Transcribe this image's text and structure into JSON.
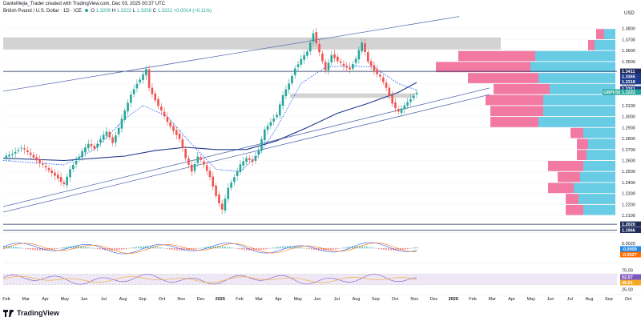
{
  "header": {
    "created_by": "DanteMejia_Trader created with TradingView.com, Dec 03, 2025 00:37 UTC",
    "symbol_line": "British Pound / U.S. Dollar · 1D · ICE",
    "ohlc": {
      "o_label": "O",
      "o": "1.3209",
      "h_label": "H",
      "h": "1.3222",
      "l_label": "L",
      "l": "1.3208",
      "c_label": "C",
      "c": "1.3222",
      "change": "+0.0014 (+0.11%)"
    },
    "currency": "USD"
  },
  "branding": {
    "name": "TradingView"
  },
  "colors": {
    "up": "#26a69a",
    "down": "#ef5350",
    "long_ma": "#1e3a8a",
    "channel": "#5b6fb0",
    "vp_up": "#4fc3e0",
    "vp_down": "#f06292",
    "zone": "#c8c8c8",
    "rsi_band": "#ede7f6",
    "rsi": "#7e57c2"
  },
  "chart_data": {
    "type": "candlestick",
    "title": "British Pound / U.S. Dollar, 1D",
    "y_axis": {
      "ticks": [
        "1.3800",
        "1.3700",
        "1.3600",
        "1.3500",
        "1.3400",
        "1.3300",
        "1.3100",
        "1.3000",
        "1.2900",
        "1.2800",
        "1.2700",
        "1.2600",
        "1.2500",
        "1.2400",
        "1.2300",
        "1.2200",
        "1.2100"
      ],
      "range": [
        1.205,
        1.39
      ]
    },
    "x_axis": {
      "ticks": [
        "Feb",
        "Mar",
        "Apr",
        "May",
        "Jun",
        "Jul",
        "Aug",
        "Sep",
        "Oct",
        "Nov",
        "Dec",
        "2025",
        "Feb",
        "Mar",
        "Apr",
        "May",
        "Jun",
        "Jul",
        "Aug",
        "Sep",
        "Oct",
        "Nov",
        "Dec",
        "2026",
        "Feb",
        "Mar",
        "Apr",
        "May",
        "Jun",
        "Jul",
        "Aug",
        "Sep",
        "Oct"
      ]
    },
    "price_badges": [
      {
        "value": "1.3411",
        "color": "#1e2a5a"
      },
      {
        "value": "1.3365",
        "color": "#1e3a8a"
      },
      {
        "value": "1.3318",
        "color": "#1e3a8a"
      },
      {
        "value": "1.3251",
        "color": "#1e3a8a"
      },
      {
        "value": "1.3222",
        "color": "#26a69a",
        "symbol": "GBPUSD"
      },
      {
        "value": "1.2020",
        "color": "#1e2a5a"
      },
      {
        "value": "1.1966",
        "color": "#1e2a5a"
      }
    ],
    "price_path": [
      [
        0,
        1.263
      ],
      [
        3,
        1.266
      ],
      [
        6,
        1.272
      ],
      [
        9,
        1.265
      ],
      [
        12,
        1.258
      ],
      [
        15,
        1.251
      ],
      [
        18,
        1.244
      ],
      [
        20,
        1.238
      ],
      [
        22,
        1.252
      ],
      [
        24,
        1.26
      ],
      [
        26,
        1.268
      ],
      [
        28,
        1.275
      ],
      [
        30,
        1.271
      ],
      [
        32,
        1.28
      ],
      [
        34,
        1.286
      ],
      [
        36,
        1.276
      ],
      [
        38,
        1.29
      ],
      [
        40,
        1.305
      ],
      [
        42,
        1.32
      ],
      [
        44,
        1.33
      ],
      [
        46,
        1.338
      ],
      [
        47,
        1.343
      ],
      [
        48,
        1.326
      ],
      [
        50,
        1.315
      ],
      [
        52,
        1.305
      ],
      [
        54,
        1.295
      ],
      [
        56,
        1.287
      ],
      [
        58,
        1.28
      ],
      [
        60,
        1.262
      ],
      [
        62,
        1.25
      ],
      [
        64,
        1.264
      ],
      [
        66,
        1.256
      ],
      [
        68,
        1.245
      ],
      [
        70,
        1.228
      ],
      [
        72,
        1.215
      ],
      [
        74,
        1.235
      ],
      [
        76,
        1.245
      ],
      [
        78,
        1.256
      ],
      [
        80,
        1.262
      ],
      [
        82,
        1.259
      ],
      [
        84,
        1.27
      ],
      [
        86,
        1.288
      ],
      [
        88,
        1.295
      ],
      [
        90,
        1.302
      ],
      [
        92,
        1.319
      ],
      [
        94,
        1.33
      ],
      [
        96,
        1.344
      ],
      [
        98,
        1.352
      ],
      [
        100,
        1.359
      ],
      [
        102,
        1.376
      ],
      [
        104,
        1.358
      ],
      [
        106,
        1.342
      ],
      [
        108,
        1.356
      ],
      [
        110,
        1.351
      ],
      [
        112,
        1.346
      ],
      [
        114,
        1.343
      ],
      [
        116,
        1.353
      ],
      [
        118,
        1.367
      ],
      [
        120,
        1.35
      ],
      [
        122,
        1.342
      ],
      [
        124,
        1.336
      ],
      [
        126,
        1.326
      ],
      [
        128,
        1.312
      ],
      [
        130,
        1.304
      ],
      [
        132,
        1.31
      ],
      [
        134,
        1.316
      ],
      [
        136,
        1.3222
      ]
    ],
    "long_ma": [
      [
        0,
        1.262
      ],
      [
        20,
        1.26
      ],
      [
        40,
        1.264
      ],
      [
        50,
        1.269
      ],
      [
        60,
        1.272
      ],
      [
        70,
        1.27
      ],
      [
        80,
        1.27
      ],
      [
        90,
        1.278
      ],
      [
        100,
        1.29
      ],
      [
        110,
        1.303
      ],
      [
        120,
        1.312
      ],
      [
        130,
        1.322
      ],
      [
        136,
        1.331
      ]
    ],
    "short_ma": [
      [
        0,
        1.26
      ],
      [
        20,
        1.256
      ],
      [
        30,
        1.27
      ],
      [
        40,
        1.298
      ],
      [
        46,
        1.31
      ],
      [
        54,
        1.3
      ],
      [
        62,
        1.275
      ],
      [
        70,
        1.252
      ],
      [
        78,
        1.25
      ],
      [
        84,
        1.265
      ],
      [
        90,
        1.29
      ],
      [
        98,
        1.33
      ],
      [
        106,
        1.345
      ],
      [
        114,
        1.346
      ],
      [
        122,
        1.345
      ],
      [
        130,
        1.33
      ],
      [
        136,
        1.324
      ]
    ],
    "channel_upper": [
      [
        0,
        1.323
      ],
      [
        150,
        1.391
      ]
    ],
    "channel_lower": [
      [
        0,
        1.218
      ],
      [
        160,
        1.326
      ]
    ],
    "channel_lower2": [
      [
        0,
        1.213
      ],
      [
        160,
        1.32
      ]
    ],
    "resistance_zone": [
      1.361,
      1.372
    ],
    "support_zone": [
      1.317,
      1.321
    ],
    "hlines": [
      1.3411,
      1.202,
      1.1966
    ],
    "volume_profile": [
      {
        "price": 1.375,
        "up": 14,
        "down": 10
      },
      {
        "price": 1.365,
        "up": 26,
        "down": 8
      },
      {
        "price": 1.355,
        "up": 100,
        "down": 96
      },
      {
        "price": 1.345,
        "up": 106,
        "down": 118
      },
      {
        "price": 1.335,
        "up": 96,
        "down": 88
      },
      {
        "price": 1.325,
        "up": 82,
        "down": 70
      },
      {
        "price": 1.315,
        "up": 90,
        "down": 72
      },
      {
        "price": 1.305,
        "up": 90,
        "down": 66
      },
      {
        "price": 1.295,
        "up": 96,
        "down": 60
      },
      {
        "price": 1.285,
        "up": 40,
        "down": 16
      },
      {
        "price": 1.275,
        "up": 34,
        "down": 14
      },
      {
        "price": 1.265,
        "up": 36,
        "down": 12
      },
      {
        "price": 1.255,
        "up": 40,
        "down": 44
      },
      {
        "price": 1.245,
        "up": 44,
        "down": 28
      },
      {
        "price": 1.235,
        "up": 52,
        "down": 32
      },
      {
        "price": 1.225,
        "up": 46,
        "down": 16
      },
      {
        "price": 1.215,
        "up": 40,
        "down": 22
      }
    ],
    "macd": {
      "labels": [
        "0.0020",
        "-0.0009",
        "-0.0027"
      ],
      "label_colors": [
        "#131722",
        "#1e88e5",
        "#ff6d00"
      ]
    },
    "rsi": {
      "ticks": [
        "75.00",
        "25.00"
      ],
      "labels": [
        "52.57",
        "45.81"
      ],
      "label_colors": [
        "#7e57c2",
        "#f9a825"
      ],
      "band": [
        30,
        70
      ]
    }
  }
}
